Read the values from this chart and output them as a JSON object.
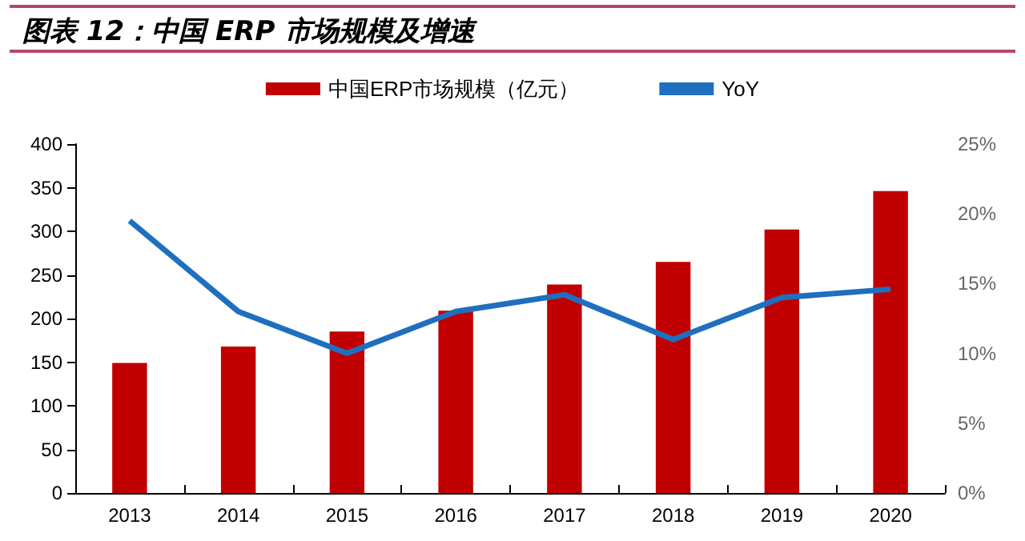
{
  "chart_data": {
    "type": "bar",
    "title": "图表 12：中国 ERP 市场规模及增速",
    "categories": [
      "2013",
      "2014",
      "2015",
      "2016",
      "2017",
      "2018",
      "2019",
      "2020"
    ],
    "series": [
      {
        "name": "中国ERP市场规模（亿元）",
        "color": "#c00000",
        "values": [
          149,
          168,
          185,
          209,
          239,
          265,
          302,
          346
        ]
      },
      {
        "name": "YoY",
        "type": "line",
        "axis": "y2",
        "color": "#1f6fbf",
        "values": [
          19.5,
          13,
          10,
          13,
          14.2,
          11,
          14,
          14.6
        ]
      }
    ],
    "ylim": [
      0,
      400
    ],
    "yticks": [
      0,
      50,
      100,
      150,
      200,
      250,
      300,
      350,
      400
    ],
    "y2lim": [
      0,
      25
    ],
    "y2ticks": [
      {
        "value": 0,
        "label": "0%"
      },
      {
        "value": 5,
        "label": "5%"
      },
      {
        "value": 10,
        "label": "10%"
      },
      {
        "value": 15,
        "label": "15%"
      },
      {
        "value": 20,
        "label": "20%"
      },
      {
        "value": 25,
        "label": "25%"
      }
    ],
    "legend": "top",
    "grid": false,
    "marker": "none"
  }
}
